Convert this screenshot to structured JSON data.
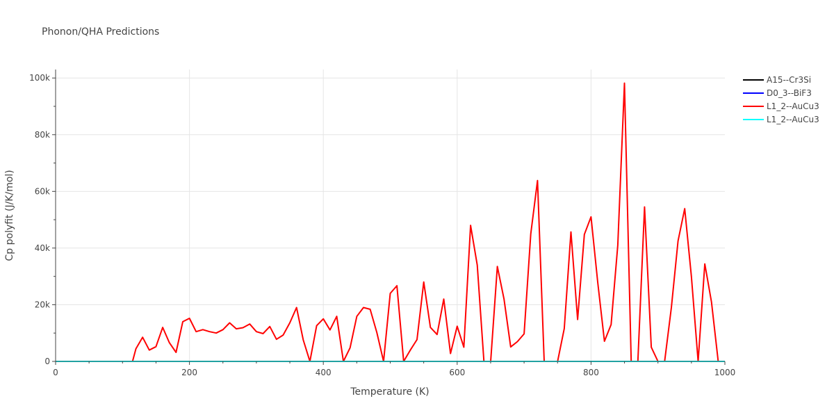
{
  "chart_data": {
    "type": "line",
    "title": "Phonon/QHA Predictions",
    "xlabel": "Temperature (K)",
    "ylabel": "Cp polyfit (J/K/mol)",
    "xlim": [
      0,
      1000
    ],
    "ylim": [
      0,
      103000
    ],
    "xticks": [
      0,
      200,
      400,
      600,
      800,
      1000
    ],
    "xtick_labels": [
      "0",
      "200",
      "400",
      "600",
      "800",
      "1000"
    ],
    "yticks": [
      0,
      20000,
      40000,
      60000,
      80000,
      100000
    ],
    "ytick_labels": [
      "0",
      "20k",
      "40k",
      "60k",
      "80k",
      "100k"
    ],
    "grid": true,
    "legend_position": "top-right",
    "series": [
      {
        "name": "A15--Cr3Si",
        "color": "#000000",
        "x": [
          0,
          1000
        ],
        "y": [
          0,
          0
        ]
      },
      {
        "name": "D0_3--BiF3",
        "color": "#0000ff",
        "x": [
          0,
          1000
        ],
        "y": [
          0,
          0
        ]
      },
      {
        "name": "L1_2--AuCu3",
        "color": "#ff0000",
        "x": [
          0,
          110,
          115,
          120,
          130,
          140,
          150,
          160,
          170,
          180,
          190,
          200,
          210,
          220,
          230,
          240,
          250,
          260,
          270,
          280,
          290,
          300,
          310,
          320,
          330,
          340,
          350,
          360,
          370,
          380,
          390,
          400,
          410,
          420,
          430,
          440,
          450,
          460,
          470,
          480,
          490,
          500,
          510,
          520,
          530,
          540,
          550,
          560,
          570,
          580,
          590,
          600,
          610,
          620,
          630,
          640,
          650,
          660,
          670,
          680,
          690,
          700,
          710,
          720,
          730,
          740,
          750,
          760,
          770,
          780,
          790,
          800,
          810,
          820,
          830,
          840,
          850,
          860,
          870,
          880,
          890,
          900,
          910,
          920,
          930,
          940,
          950,
          960,
          970,
          980,
          990
        ],
        "y": [
          0,
          0,
          0,
          4500,
          8500,
          4000,
          5200,
          12000,
          6600,
          3200,
          14000,
          15200,
          10500,
          11200,
          10500,
          10000,
          11200,
          13600,
          11500,
          11900,
          13200,
          10500,
          9800,
          12300,
          7800,
          9300,
          13600,
          19000,
          7600,
          0,
          12600,
          15000,
          11100,
          15900,
          0,
          4800,
          15900,
          19000,
          18400,
          10200,
          0,
          24000,
          26700,
          0,
          4000,
          7700,
          28000,
          12000,
          9500,
          22000,
          2800,
          12400,
          5000,
          48000,
          34000,
          0,
          0,
          33500,
          22000,
          5100,
          7000,
          9700,
          45000,
          63800,
          0,
          0,
          0,
          11600,
          45700,
          14800,
          44800,
          51000,
          28000,
          7100,
          13000,
          41000,
          98200,
          0,
          0,
          54500,
          5000,
          0,
          0,
          19000,
          42500,
          53900,
          30000,
          0,
          34400,
          21000,
          0
        ]
      },
      {
        "name": "L1_2--AuCu3",
        "color": "#00ffff",
        "x": [
          0,
          1000
        ],
        "y": [
          0,
          0
        ]
      }
    ]
  }
}
